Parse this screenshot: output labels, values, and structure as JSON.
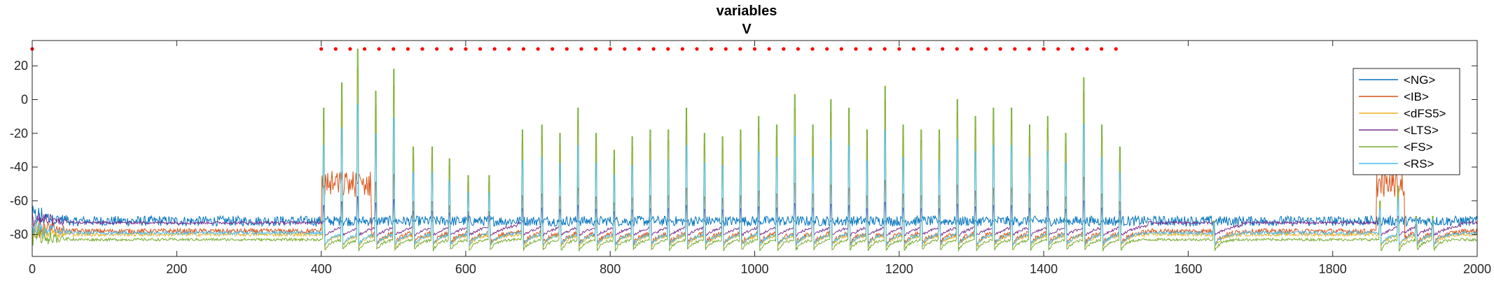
{
  "chart_data": {
    "type": "line",
    "title": "variables",
    "subtitle": "V",
    "xlabel": "",
    "ylabel": "",
    "xlim": [
      0,
      2000
    ],
    "ylim": [
      -93,
      35
    ],
    "x_ticks": [
      0,
      200,
      400,
      600,
      800,
      1000,
      1200,
      1400,
      1600,
      1800,
      2000
    ],
    "y_ticks": [
      20,
      0,
      -20,
      -40,
      -60,
      -80
    ],
    "grid": false,
    "legend_position": "top-right",
    "series": [
      {
        "name": "<NG>",
        "color": "#0072BD"
      },
      {
        "name": "<IB>",
        "color": "#D95319"
      },
      {
        "name": "<dFS5>",
        "color": "#EDB120"
      },
      {
        "name": "<LTS>",
        "color": "#7E2F8E"
      },
      {
        "name": "<FS>",
        "color": "#77AC30"
      },
      {
        "name": "<RS>",
        "color": "#4DBEEE"
      }
    ],
    "stimulus_markers": {
      "color": "#FF0000",
      "y": 30,
      "x_start": 400,
      "x_end": 1500,
      "step": 20
    },
    "spike_times": [
      403,
      428,
      450,
      475,
      500,
      527,
      553,
      577,
      603,
      632,
      678,
      705,
      730,
      755,
      780,
      805,
      830,
      855,
      880,
      905,
      930,
      955,
      980,
      1005,
      1030,
      1055,
      1080,
      1105,
      1130,
      1155,
      1180,
      1205,
      1230,
      1255,
      1280,
      1305,
      1330,
      1355,
      1380,
      1405,
      1430,
      1455,
      1480,
      1505,
      1635,
      1865,
      1890,
      1915,
      1938
    ],
    "spike_peaks": [
      -5,
      10,
      30,
      5,
      18,
      -28,
      -28,
      -35,
      -45,
      -45,
      -18,
      -15,
      -20,
      -5,
      -20,
      -30,
      -22,
      -18,
      -18,
      -5,
      -20,
      -22,
      -18,
      -10,
      -15,
      3,
      -15,
      0,
      -5,
      -18,
      8,
      -15,
      -18,
      -18,
      0,
      -10,
      -5,
      -5,
      -15,
      -10,
      -20,
      13,
      -15,
      -28,
      -65,
      -45,
      -30,
      -60,
      -60
    ]
  }
}
